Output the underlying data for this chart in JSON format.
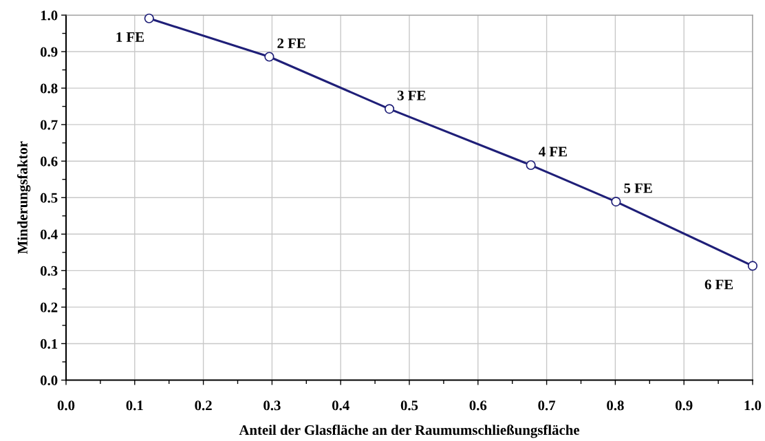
{
  "chart_data": {
    "type": "line",
    "xlabel": "Anteil der Glasfläche an der Raumumschließungsfläche",
    "ylabel": "Minderungsfaktor",
    "x": [
      0.121,
      0.296,
      0.471,
      0.677,
      0.801,
      1.0
    ],
    "series": [
      {
        "color": "#1f1f78",
        "values": [
          0.991,
          0.886,
          0.743,
          0.589,
          0.489,
          0.313
        ]
      }
    ],
    "xlim": [
      0.0,
      1.0
    ],
    "ylim": [
      0.0,
      1.0
    ],
    "xticks": [
      {
        "value": 0.0,
        "label": "0.0"
      },
      {
        "value": 0.1,
        "label": "0.1"
      },
      {
        "value": 0.2,
        "label": "0.2"
      },
      {
        "value": 0.3,
        "label": "0.3"
      },
      {
        "value": 0.4,
        "label": "0.4"
      },
      {
        "value": 0.5,
        "label": "0.5"
      },
      {
        "value": 0.6,
        "label": "0.6"
      },
      {
        "value": 0.7,
        "label": "0.7"
      },
      {
        "value": 0.8,
        "label": "0.8"
      },
      {
        "value": 0.9,
        "label": "0.9"
      },
      {
        "value": 1.0,
        "label": "1.0"
      }
    ],
    "yticks": [
      {
        "value": 0.0,
        "label": "0.0"
      },
      {
        "value": 0.1,
        "label": "0.1"
      },
      {
        "value": 0.2,
        "label": "0.2"
      },
      {
        "value": 0.3,
        "label": "0.3"
      },
      {
        "value": 0.4,
        "label": "0.4"
      },
      {
        "value": 0.5,
        "label": "0.5"
      },
      {
        "value": 0.6,
        "label": "0.6"
      },
      {
        "value": 0.7,
        "label": "0.7"
      },
      {
        "value": 0.8,
        "label": "0.8"
      },
      {
        "value": 0.9,
        "label": "0.9"
      },
      {
        "value": 1.0,
        "label": "1.0"
      }
    ],
    "grid": true,
    "marker": "circle",
    "line_style": "solid",
    "annotations": [
      {
        "text": "1 FE",
        "x": 0.121,
        "y": 0.991
      },
      {
        "text": "2 FE",
        "x": 0.296,
        "y": 0.886
      },
      {
        "text": "3 FE",
        "x": 0.471,
        "y": 0.743
      },
      {
        "text": "4 FE",
        "x": 0.677,
        "y": 0.589
      },
      {
        "text": "5 FE",
        "x": 0.801,
        "y": 0.489
      },
      {
        "text": "6 FE",
        "x": 1.0,
        "y": 0.313
      }
    ]
  }
}
